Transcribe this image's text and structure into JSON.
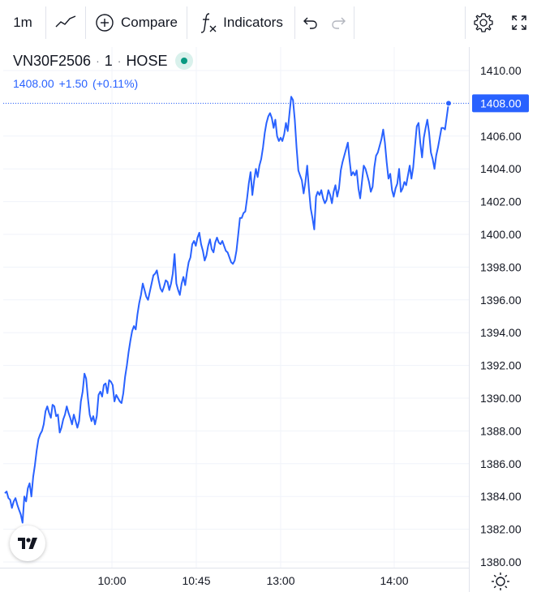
{
  "toolbar": {
    "interval": "1m",
    "compare_label": "Compare",
    "indicators_label": "Indicators",
    "icons": {
      "chart_type": "line-chart-icon",
      "compare": "plus-circle-icon",
      "indicators": "function-fx-icon",
      "undo": "undo-icon",
      "redo": "redo-icon",
      "settings": "gear-icon",
      "fullscreen": "fullscreen-icon"
    }
  },
  "legend": {
    "symbol": "VN30F2506",
    "interval": "1",
    "exchange": "HOSE",
    "last": "1408.00",
    "change": "+1.50",
    "change_pct": "(+0.11%)",
    "market_status_color": "#089981"
  },
  "colors": {
    "line": "#2962ff",
    "grid": "#f0f3fa",
    "axis_text": "#131722",
    "last_price_bg": "#2962ff"
  },
  "chart_data": {
    "type": "line",
    "ylim": [
      1380,
      1411
    ],
    "y_ticks": [
      "1380.00",
      "1382.00",
      "1384.00",
      "1386.00",
      "1388.00",
      "1390.00",
      "1392.00",
      "1394.00",
      "1396.00",
      "1398.00",
      "1400.00",
      "1402.00",
      "1404.00",
      "1406.00",
      "1408.00",
      "1410.00"
    ],
    "x_ticks": [
      "10:00",
      "10:45",
      "13:00",
      "14:00"
    ],
    "last_price_label": "1408.00",
    "last_price": 1408.0,
    "series": [
      {
        "values": [
          1384.2,
          1384.3,
          1383.9,
          1383.8,
          1383.3,
          1383.7,
          1383.9,
          1383.5,
          1383.2,
          1382.9,
          1382.4,
          1384.0,
          1383.7,
          1384.5,
          1384.8,
          1384.0,
          1385.2,
          1385.9,
          1386.8,
          1387.5,
          1387.8,
          1388.0,
          1388.4,
          1389.2,
          1389.5,
          1389.1,
          1388.8,
          1389.6,
          1389.5,
          1388.9,
          1389.0,
          1387.9,
          1388.2,
          1388.7,
          1389.0,
          1389.5,
          1389.1,
          1388.8,
          1388.4,
          1389.0,
          1388.6,
          1388.2,
          1388.6,
          1389.8,
          1390.4,
          1391.5,
          1391.2,
          1390.0,
          1389.0,
          1388.6,
          1388.9,
          1388.4,
          1388.9,
          1390.2,
          1390.4,
          1390.1,
          1390.8,
          1390.9,
          1390.3,
          1391.1,
          1391.0,
          1390.8,
          1389.8,
          1390.2,
          1390.0,
          1389.8,
          1389.7,
          1390.3,
          1391.3,
          1392.0,
          1392.8,
          1393.5,
          1394.1,
          1394.4,
          1394.2,
          1395.1,
          1395.8,
          1396.3,
          1397.0,
          1396.6,
          1396.2,
          1396.0,
          1396.5,
          1397.0,
          1397.5,
          1397.6,
          1397.8,
          1397.2,
          1396.7,
          1396.5,
          1396.8,
          1397.2,
          1397.1,
          1396.6,
          1397.0,
          1397.6,
          1398.8,
          1397.0,
          1396.6,
          1396.3,
          1397.0,
          1397.4,
          1396.9,
          1397.7,
          1398.3,
          1398.6,
          1399.4,
          1399.6,
          1399.3,
          1399.8,
          1400.1,
          1399.4,
          1399.0,
          1398.4,
          1398.7,
          1399.3,
          1399.7,
          1399.1,
          1398.9,
          1399.5,
          1399.8,
          1399.5,
          1399.4,
          1399.6,
          1399.3,
          1399.0,
          1398.9,
          1398.6,
          1398.3,
          1398.2,
          1398.4,
          1399.0,
          1400.0,
          1401.0,
          1401.0,
          1401.3,
          1401.4,
          1402.2,
          1403.1,
          1403.8,
          1402.4,
          1403.3,
          1404.0,
          1403.5,
          1404.2,
          1404.6,
          1405.3,
          1406.2,
          1406.8,
          1407.2,
          1407.4,
          1407.1,
          1406.5,
          1407.0,
          1406.0,
          1405.7,
          1405.9,
          1405.7,
          1406.1,
          1406.8,
          1406.3,
          1407.4,
          1408.4,
          1408.2,
          1407.0,
          1405.3,
          1403.9,
          1403.6,
          1403.3,
          1402.5,
          1403.2,
          1404.2,
          1402.8,
          1401.6,
          1401.0,
          1400.3,
          1402.3,
          1402.6,
          1402.4,
          1402.7,
          1402.2,
          1401.9,
          1402.1,
          1402.7,
          1402.4,
          1401.9,
          1402.6,
          1403.0,
          1402.3,
          1402.8,
          1403.9,
          1404.4,
          1404.8,
          1405.2,
          1405.6,
          1404.5,
          1403.6,
          1403.8,
          1403.6,
          1403.9,
          1402.8,
          1402.2,
          1403.2,
          1404.2,
          1404.0,
          1403.6,
          1403.2,
          1402.6,
          1402.9,
          1404.1,
          1404.8,
          1405.0,
          1405.4,
          1405.8,
          1406.4,
          1405.6,
          1404.4,
          1403.4,
          1403.7,
          1402.7,
          1402.3,
          1402.8,
          1403.1,
          1404.0,
          1402.6,
          1402.8,
          1403.2,
          1403.0,
          1403.6,
          1404.2,
          1403.4,
          1404.1,
          1405.4,
          1406.6,
          1406.8,
          1405.6,
          1404.7,
          1405.9,
          1406.5,
          1407.0,
          1406.2,
          1405.0,
          1404.6,
          1404.0,
          1404.8,
          1405.3,
          1405.9,
          1406.5,
          1406.5,
          1406.4,
          1407.2,
          1408.0
        ]
      }
    ]
  }
}
